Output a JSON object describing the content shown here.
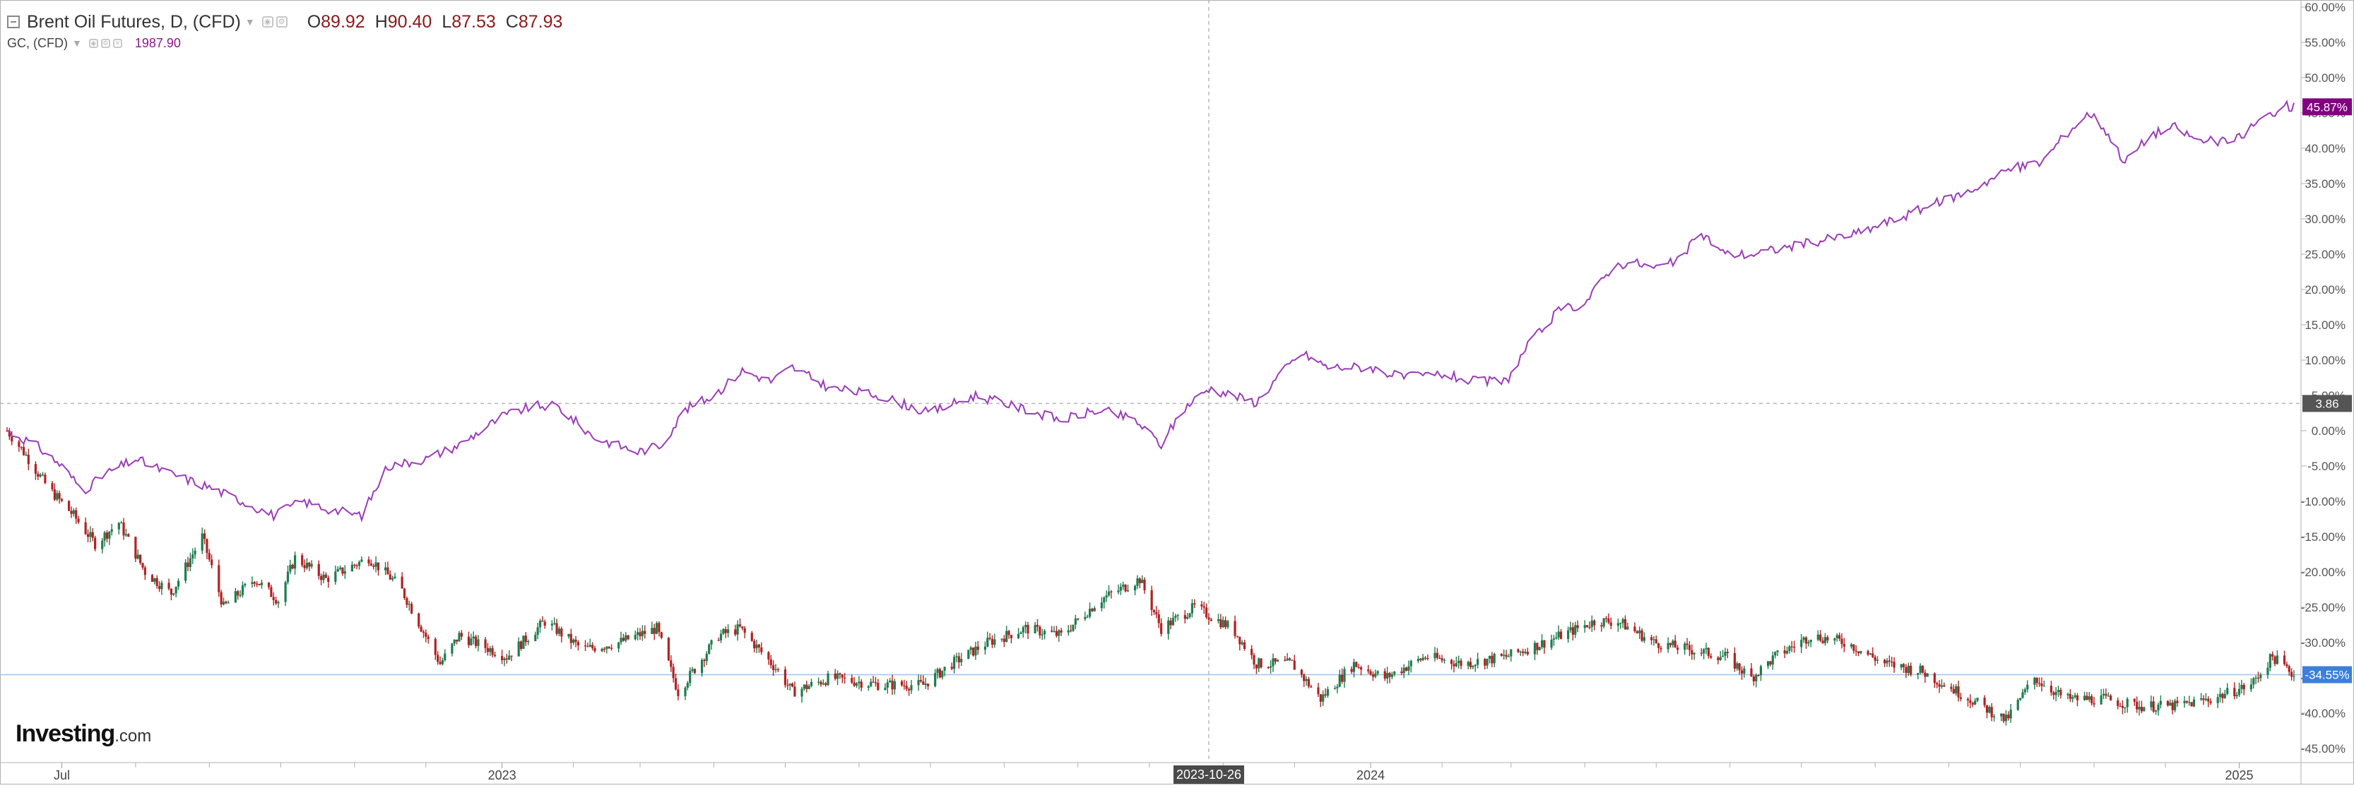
{
  "legend": {
    "instrument": "Brent Oil Futures, D, (CFD)",
    "open_label": "O",
    "open": "89.92",
    "high_label": "H",
    "high": "90.40",
    "low_label": "L",
    "low": "87.53",
    "close_label": "C",
    "close": "87.93",
    "compare_instrument": "GC, (CFD)",
    "compare_value": "1987.90"
  },
  "logo": {
    "main": "Investing",
    "suffix": ".com"
  },
  "colors": {
    "up_candle": "#1e7d4e",
    "down_candle": "#b22222",
    "compare_line": "#9a3db8",
    "compare_badge": "#800080",
    "brent_badge": "#3d7fd9",
    "crosshair_badge": "#555555",
    "date_badge": "#4a4a4a",
    "horizontal_line": "#9ec5ec",
    "grid_axis": "#b0b0b0"
  },
  "chart_data": {
    "type": "line",
    "y_axis": {
      "unit": "percent change",
      "range": [
        -47,
        61
      ],
      "ticks": [
        "60.00%",
        "55.00%",
        "50.00%",
        "45.00%",
        "40.00%",
        "35.00%",
        "30.00%",
        "25.00%",
        "20.00%",
        "15.00%",
        "10.00%",
        "5.00%",
        "0.00%",
        "-5.00%",
        "-10.00%",
        "-15.00%",
        "-20.00%",
        "-25.00%",
        "-30.00%",
        "-35.00%",
        "-40.00%",
        "-45.00%"
      ],
      "position": "right"
    },
    "x_axis": {
      "range": [
        "2022-06-08",
        "2025-01-24"
      ],
      "labels": [
        {
          "label": "Jul",
          "date": "2022-07-01"
        },
        {
          "label": "2023",
          "date": "2023-01-02"
        },
        {
          "label": "2024",
          "date": "2024-01-02"
        },
        {
          "label": "2025",
          "date": "2025-01-01"
        }
      ],
      "minor_ticks": [
        "2022-08-01",
        "2022-09-01",
        "2022-10-01",
        "2022-11-01",
        "2022-12-01",
        "2023-02-01",
        "2023-03-01",
        "2023-04-01",
        "2023-05-01",
        "2023-06-01",
        "2023-07-01",
        "2023-08-01",
        "2023-09-01",
        "2023-10-01",
        "2023-11-01",
        "2023-12-01",
        "2024-02-01",
        "2024-03-01",
        "2024-04-01",
        "2024-05-01",
        "2024-06-01",
        "2024-07-01",
        "2024-08-01",
        "2024-09-01",
        "2024-10-01",
        "2024-11-01",
        "2024-12-01"
      ]
    },
    "crosshair": {
      "date_label": "2023-10-26",
      "date": "2023-10-26",
      "value_label": "3.86",
      "value": 3.86
    },
    "series": [
      {
        "name": "GC, (CFD)",
        "style": "line",
        "last_label": "45.87%",
        "last_value": 45.87,
        "points": [
          [
            "2022-06-08",
            0
          ],
          [
            "2022-06-20",
            -2
          ],
          [
            "2022-07-01",
            -5
          ],
          [
            "2022-07-10",
            -8.5
          ],
          [
            "2022-07-20",
            -6
          ],
          [
            "2022-08-01",
            -4
          ],
          [
            "2022-08-15",
            -6
          ],
          [
            "2022-09-01",
            -8
          ],
          [
            "2022-09-15",
            -10
          ],
          [
            "2022-09-28",
            -12
          ],
          [
            "2022-10-10",
            -10
          ],
          [
            "2022-10-20",
            -11
          ],
          [
            "2022-11-04",
            -12
          ],
          [
            "2022-11-15",
            -5
          ],
          [
            "2022-12-01",
            -4
          ],
          [
            "2022-12-15",
            -2
          ],
          [
            "2023-01-02",
            2
          ],
          [
            "2023-01-15",
            3.5
          ],
          [
            "2023-01-25",
            3.5
          ],
          [
            "2023-02-10",
            -1
          ],
          [
            "2023-02-28",
            -3
          ],
          [
            "2023-03-10",
            -2
          ],
          [
            "2023-03-20",
            3
          ],
          [
            "2023-04-01",
            5
          ],
          [
            "2023-04-13",
            8.5
          ],
          [
            "2023-04-25",
            7
          ],
          [
            "2023-05-04",
            9
          ],
          [
            "2023-05-20",
            6
          ],
          [
            "2023-06-10",
            5
          ],
          [
            "2023-06-30",
            2.5
          ],
          [
            "2023-07-20",
            5
          ],
          [
            "2023-08-10",
            3
          ],
          [
            "2023-08-25",
            1.5
          ],
          [
            "2023-09-10",
            3
          ],
          [
            "2023-09-25",
            1.5
          ],
          [
            "2023-10-06",
            -2
          ],
          [
            "2023-10-15",
            3
          ],
          [
            "2023-10-26",
            6
          ],
          [
            "2023-11-05",
            5
          ],
          [
            "2023-11-15",
            4
          ],
          [
            "2023-11-25",
            8
          ],
          [
            "2023-12-04",
            11
          ],
          [
            "2023-12-15",
            9
          ],
          [
            "2024-01-02",
            9
          ],
          [
            "2024-01-15",
            7.5
          ],
          [
            "2024-02-01",
            8
          ],
          [
            "2024-02-14",
            7
          ],
          [
            "2024-02-28",
            7
          ],
          [
            "2024-03-08",
            12
          ],
          [
            "2024-03-21",
            17
          ],
          [
            "2024-04-01",
            18
          ],
          [
            "2024-04-12",
            23
          ],
          [
            "2024-04-20",
            24
          ],
          [
            "2024-04-30",
            23
          ],
          [
            "2024-05-10",
            24
          ],
          [
            "2024-05-20",
            28
          ],
          [
            "2024-05-30",
            25
          ],
          [
            "2024-06-10",
            25
          ],
          [
            "2024-06-25",
            26
          ],
          [
            "2024-07-10",
            27
          ],
          [
            "2024-07-25",
            28
          ],
          [
            "2024-08-10",
            30
          ],
          [
            "2024-08-25",
            32
          ],
          [
            "2024-09-10",
            34
          ],
          [
            "2024-09-26",
            37
          ],
          [
            "2024-10-10",
            38
          ],
          [
            "2024-10-20",
            42
          ],
          [
            "2024-10-30",
            45
          ],
          [
            "2024-11-05",
            43
          ],
          [
            "2024-11-14",
            38
          ],
          [
            "2024-11-25",
            42
          ],
          [
            "2024-12-05",
            43
          ],
          [
            "2024-12-15",
            41
          ],
          [
            "2024-12-30",
            41
          ],
          [
            "2025-01-10",
            44
          ],
          [
            "2025-01-20",
            46
          ],
          [
            "2025-01-24",
            45.87
          ]
        ]
      },
      {
        "name": "Brent Oil Futures, D, (CFD)",
        "style": "candlestick",
        "last_label": "-34.55%",
        "last_value": -34.55,
        "points": [
          [
            "2022-06-08",
            0
          ],
          [
            "2022-06-15",
            -3
          ],
          [
            "2022-06-25",
            -8
          ],
          [
            "2022-07-06",
            -12
          ],
          [
            "2022-07-15",
            -16
          ],
          [
            "2022-07-25",
            -13
          ],
          [
            "2022-08-05",
            -20
          ],
          [
            "2022-08-16",
            -23
          ],
          [
            "2022-08-29",
            -15
          ],
          [
            "2022-09-07",
            -25
          ],
          [
            "2022-09-20",
            -21
          ],
          [
            "2022-09-30",
            -24
          ],
          [
            "2022-10-07",
            -18
          ],
          [
            "2022-10-20",
            -21
          ],
          [
            "2022-11-07",
            -18
          ],
          [
            "2022-11-20",
            -22
          ],
          [
            "2022-12-07",
            -33
          ],
          [
            "2022-12-15",
            -29
          ],
          [
            "2023-01-04",
            -32
          ],
          [
            "2023-01-20",
            -27
          ],
          [
            "2023-02-05",
            -31
          ],
          [
            "2023-02-20",
            -30
          ],
          [
            "2023-03-08",
            -28
          ],
          [
            "2023-03-17",
            -37
          ],
          [
            "2023-04-03",
            -29
          ],
          [
            "2023-04-12",
            -28
          ],
          [
            "2023-04-28",
            -34
          ],
          [
            "2023-05-04",
            -37
          ],
          [
            "2023-05-20",
            -35
          ],
          [
            "2023-06-10",
            -36
          ],
          [
            "2023-06-28",
            -36
          ],
          [
            "2023-07-10",
            -33
          ],
          [
            "2023-07-25",
            -30
          ],
          [
            "2023-08-10",
            -28
          ],
          [
            "2023-08-25",
            -29
          ],
          [
            "2023-09-10",
            -24
          ],
          [
            "2023-09-27",
            -21
          ],
          [
            "2023-10-06",
            -28
          ],
          [
            "2023-10-20",
            -25
          ],
          [
            "2023-11-05",
            -28
          ],
          [
            "2023-11-15",
            -33
          ],
          [
            "2023-11-30",
            -33
          ],
          [
            "2023-12-12",
            -38
          ],
          [
            "2023-12-26",
            -33
          ],
          [
            "2024-01-08",
            -35
          ],
          [
            "2024-01-25",
            -32
          ],
          [
            "2024-02-10",
            -33
          ],
          [
            "2024-02-28",
            -32
          ],
          [
            "2024-03-15",
            -30
          ],
          [
            "2024-04-05",
            -27
          ],
          [
            "2024-04-15",
            -27
          ],
          [
            "2024-04-30",
            -30
          ],
          [
            "2024-05-15",
            -31
          ],
          [
            "2024-05-30",
            -32
          ],
          [
            "2024-06-10",
            -35
          ],
          [
            "2024-06-20",
            -32
          ],
          [
            "2024-07-05",
            -29
          ],
          [
            "2024-07-20",
            -30
          ],
          [
            "2024-08-05",
            -33
          ],
          [
            "2024-08-20",
            -34
          ],
          [
            "2024-09-10",
            -38
          ],
          [
            "2024-09-25",
            -41
          ],
          [
            "2024-10-07",
            -35
          ],
          [
            "2024-10-20",
            -38
          ],
          [
            "2024-11-05",
            -38
          ],
          [
            "2024-11-20",
            -39
          ],
          [
            "2024-12-05",
            -39
          ],
          [
            "2024-12-20",
            -38
          ],
          [
            "2025-01-06",
            -36
          ],
          [
            "2025-01-15",
            -32
          ],
          [
            "2025-01-24",
            -34.55
          ]
        ]
      }
    ]
  }
}
